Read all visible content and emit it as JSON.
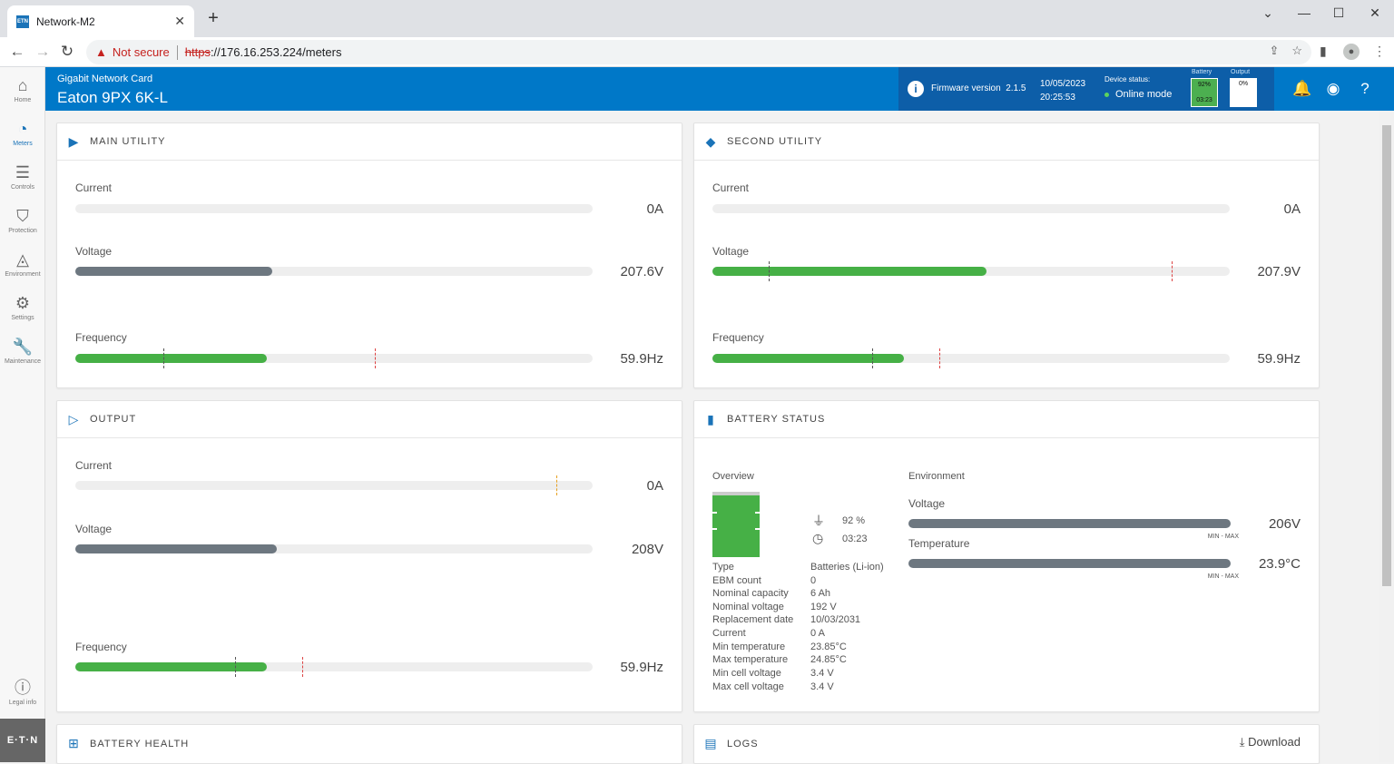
{
  "browser": {
    "tab_title": "Network-M2",
    "tab_favicon": "ETN",
    "not_secure": "Not secure",
    "url_scheme": "https",
    "url_rest": "://176.16.253.224/meters"
  },
  "nav": {
    "items": [
      {
        "label": "Home",
        "icon": "home-icon"
      },
      {
        "label": "Meters",
        "icon": "meter-icon"
      },
      {
        "label": "Controls",
        "icon": "sliders-icon"
      },
      {
        "label": "Protection",
        "icon": "shield-icon"
      },
      {
        "label": "Environment",
        "icon": "drop-icon"
      },
      {
        "label": "Settings",
        "icon": "gear-icon"
      },
      {
        "label": "Maintenance",
        "icon": "wrench-icon"
      }
    ],
    "legal_label": "Legal info",
    "logo": "E·T·N"
  },
  "header": {
    "subtitle": "Gigabit Network Card",
    "title": "Eaton 9PX 6K-L",
    "firmware_label": "Firmware version",
    "firmware_version": "2.1.5",
    "date": "10/05/2023",
    "time": "20:25:53",
    "device_status_label": "Device status:",
    "device_status": "Online mode",
    "battery_label": "Battery",
    "battery_pct": "92%",
    "battery_time": "03:23",
    "output_label": "Output",
    "output_pct": "0%"
  },
  "main_utility": {
    "title": "MAIN UTILITY",
    "current_label": "Current",
    "current_value": "0A",
    "voltage_label": "Voltage",
    "voltage_value": "207.6V",
    "voltage_fill": 0.38,
    "frequency_label": "Frequency",
    "frequency_value": "59.9Hz",
    "frequency_fill": 0.37
  },
  "second_utility": {
    "title": "SECOND UTILITY",
    "current_label": "Current",
    "current_value": "0A",
    "voltage_label": "Voltage",
    "voltage_value": "207.9V",
    "voltage_fill": 0.53,
    "frequency_label": "Frequency",
    "frequency_value": "59.9Hz",
    "frequency_fill": 0.37
  },
  "output": {
    "title": "OUTPUT",
    "current_label": "Current",
    "current_value": "0A",
    "voltage_label": "Voltage",
    "voltage_value": "208V",
    "voltage_fill": 0.39,
    "frequency_label": "Frequency",
    "frequency_value": "59.9Hz",
    "frequency_fill": 0.37
  },
  "battery_status": {
    "title": "BATTERY STATUS",
    "overview_label": "Overview",
    "charge": "92 %",
    "runtime": "03:23",
    "rows": [
      {
        "k": "Type",
        "v": "Batteries (Li-ion)"
      },
      {
        "k": "EBM count",
        "v": "0"
      },
      {
        "k": "Nominal capacity",
        "v": "6 Ah"
      },
      {
        "k": "Nominal voltage",
        "v": "192 V"
      },
      {
        "k": "Replacement date",
        "v": "10/03/2031"
      },
      {
        "k": "Current",
        "v": "0 A"
      },
      {
        "k": "Min temperature",
        "v": "23.85°C"
      },
      {
        "k": "Max temperature",
        "v": "24.85°C"
      },
      {
        "k": "Min cell voltage",
        "v": "3.4 V"
      },
      {
        "k": "Max cell voltage",
        "v": "3.4 V"
      }
    ],
    "environment_label": "Environment",
    "env_voltage_label": "Voltage",
    "env_voltage_value": "206V",
    "env_temp_label": "Temperature",
    "env_temp_value": "23.9°C",
    "minmax": "MIN - MAX"
  },
  "battery_health": {
    "title": "BATTERY HEALTH"
  },
  "logs": {
    "title": "LOGS",
    "download": "Download"
  }
}
